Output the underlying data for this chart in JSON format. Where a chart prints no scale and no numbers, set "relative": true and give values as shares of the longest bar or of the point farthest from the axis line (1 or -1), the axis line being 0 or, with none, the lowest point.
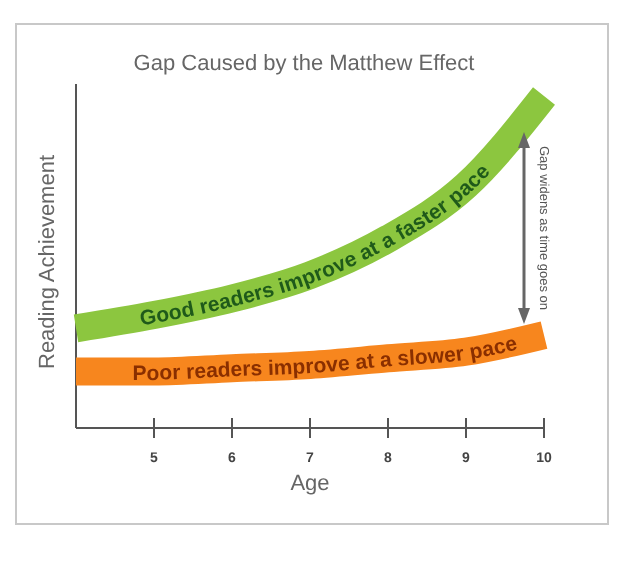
{
  "chart_data": {
    "type": "line",
    "title": "Gap Caused by the Matthew Effect",
    "xlabel": "Age",
    "ylabel": "Reading Achievement",
    "relative": true,
    "x": [
      4,
      5,
      6,
      7,
      8,
      9,
      10
    ],
    "xlim": [
      4,
      10
    ],
    "xticks": [
      5,
      6,
      7,
      8,
      9,
      10
    ],
    "line_style": "solid",
    "marker": "none",
    "grid": false,
    "series": [
      {
        "name": "Good readers improve at a faster pace",
        "color": "#8cc63f",
        "values": [
          0.3,
          0.34,
          0.39,
          0.46,
          0.57,
          0.73,
          1
        ]
      },
      {
        "name": "Poor readers improve at a slower pace",
        "color": "#f7861e",
        "values": [
          0.17,
          0.17,
          0.18,
          0.19,
          0.21,
          0.23,
          0.28
        ]
      }
    ],
    "annotations": [
      "Gap widens as time goes on"
    ]
  }
}
